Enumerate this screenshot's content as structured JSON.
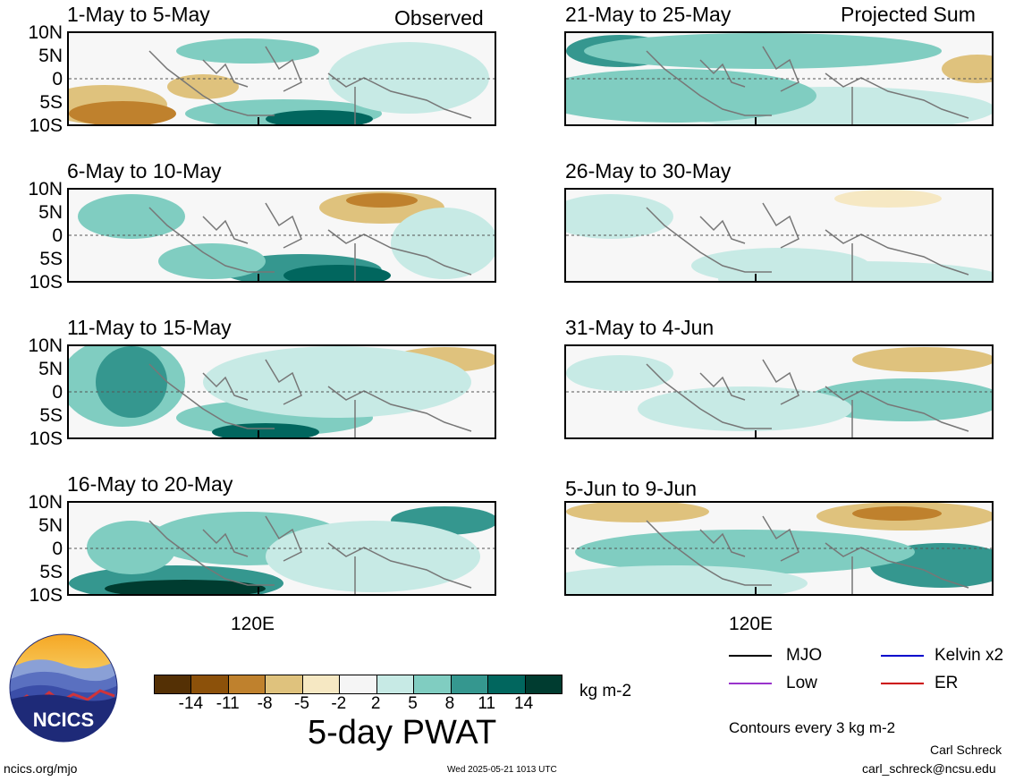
{
  "panels": [
    {
      "title": "1-May to 5-May",
      "corner": "Observed"
    },
    {
      "title": "6-May to 10-May",
      "corner": ""
    },
    {
      "title": "11-May to 15-May",
      "corner": ""
    },
    {
      "title": "16-May to 20-May",
      "corner": ""
    },
    {
      "title": "21-May to 25-May",
      "corner": "Projected Sum"
    },
    {
      "title": "26-May to 30-May",
      "corner": ""
    },
    {
      "title": "31-May to 4-Jun",
      "corner": ""
    },
    {
      "title": "5-Jun to 9-Jun",
      "corner": ""
    }
  ],
  "lat_labels": [
    "10N",
    "5N",
    "0",
    "5S",
    "10S"
  ],
  "lon_label": "120E",
  "colorbar": {
    "ticks": [
      "-14",
      "-11",
      "-8",
      "-5",
      "-2",
      "2",
      "5",
      "8",
      "11",
      "14"
    ],
    "colors": [
      "#543005",
      "#8c510a",
      "#bf812d",
      "#dfc27d",
      "#f6e8c3",
      "#f5f5f5",
      "#c7eae5",
      "#80cdc1",
      "#35978f",
      "#01665e",
      "#003c30"
    ],
    "units": "kg m-2",
    "title": "5-day PWAT"
  },
  "legend": {
    "items": [
      {
        "label": "MJO",
        "color": "#000000"
      },
      {
        "label": "Kelvin x2",
        "color": "#0000cc"
      },
      {
        "label": "Low",
        "color": "#9933cc"
      },
      {
        "label": "ER",
        "color": "#cc0000"
      }
    ],
    "contours_note": "Contours every 3 kg m-2"
  },
  "logo_text": "NCICS",
  "footer": {
    "website": "ncics.org/mjo",
    "timestamp": "Wed 2025-05-21 1013 UTC",
    "author": "Carl Schreck",
    "email": "carl_schreck@ncsu.edu"
  }
}
